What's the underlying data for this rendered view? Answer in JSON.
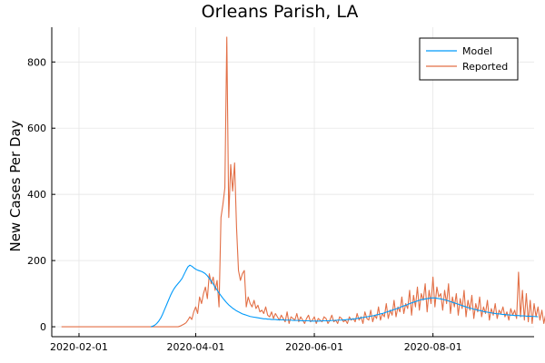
{
  "chart_data": {
    "type": "line",
    "title": "Orleans Parish, LA",
    "xlabel": "",
    "ylabel": "New Cases Per Day",
    "x_start": "2020-01-23",
    "xlim": [
      "2020-01-18",
      "2020-09-22"
    ],
    "ylim": [
      -30,
      905
    ],
    "x_ticks": [
      "2020-02-01",
      "2020-04-01",
      "2020-06-01",
      "2020-08-01"
    ],
    "y_ticks": [
      0,
      200,
      400,
      600,
      800
    ],
    "grid": true,
    "legend_position": "top-right",
    "series": [
      {
        "name": "Model",
        "color": "#009AFA",
        "start": "2020-03-09",
        "values": [
          0,
          2,
          5,
          10,
          17,
          26,
          38,
          52,
          66,
          80,
          94,
          106,
          116,
          124,
          131,
          138,
          146,
          158,
          170,
          181,
          186,
          183,
          178,
          174,
          171,
          169,
          167,
          164,
          160,
          154,
          146,
          138,
          129,
          120,
          111,
          102,
          94,
          86,
          79,
          72,
          66,
          61,
          56,
          52,
          48,
          45,
          42,
          39,
          37,
          35,
          33,
          31,
          30,
          29,
          28,
          27,
          26,
          25,
          24,
          24,
          23,
          23,
          22,
          22,
          22,
          21,
          21,
          21,
          21,
          20,
          20,
          20,
          20,
          19,
          19,
          19,
          19,
          18,
          18,
          18,
          18,
          18,
          17,
          17,
          17,
          17,
          17,
          17,
          18,
          18,
          18,
          18,
          18,
          19,
          19,
          19,
          20,
          20,
          20,
          21,
          21,
          22,
          22,
          23,
          23,
          24,
          25,
          26,
          27,
          28,
          29,
          30,
          31,
          32,
          33,
          34,
          36,
          37,
          39,
          40,
          42,
          44,
          46,
          48,
          50,
          52,
          54,
          56,
          58,
          61,
          63,
          65,
          67,
          70,
          72,
          74,
          76,
          78,
          80,
          82,
          83,
          84,
          85,
          86,
          87,
          87,
          87,
          86,
          85,
          84,
          83,
          81,
          80,
          78,
          76,
          74,
          72,
          70,
          68,
          66,
          64,
          62,
          60,
          58,
          56,
          55,
          53,
          52,
          50,
          49,
          48,
          46,
          45,
          44,
          43,
          42,
          41,
          40,
          39,
          39,
          38,
          37,
          37,
          36,
          36,
          35,
          35,
          34,
          34,
          34,
          33,
          33,
          33,
          32,
          32,
          32,
          31,
          31,
          31,
          30
        ]
      },
      {
        "name": "Reported",
        "color": "#E26F46",
        "start": "2020-01-23",
        "values": [
          0,
          0,
          0,
          0,
          0,
          0,
          0,
          0,
          0,
          0,
          0,
          0,
          0,
          0,
          0,
          0,
          0,
          0,
          0,
          0,
          0,
          0,
          0,
          0,
          0,
          0,
          0,
          0,
          0,
          0,
          0,
          0,
          0,
          0,
          0,
          0,
          0,
          0,
          0,
          0,
          0,
          0,
          0,
          0,
          0,
          0,
          0,
          0,
          0,
          0,
          0,
          0,
          0,
          0,
          0,
          0,
          0,
          0,
          0,
          0,
          0,
          2,
          5,
          8,
          12,
          20,
          30,
          22,
          45,
          60,
          40,
          90,
          70,
          100,
          120,
          85,
          160,
          130,
          150,
          110,
          140,
          60,
          330,
          370,
          420,
          875,
          330,
          490,
          410,
          495,
          300,
          170,
          140,
          160,
          170,
          60,
          90,
          70,
          60,
          80,
          55,
          65,
          45,
          50,
          40,
          60,
          35,
          30,
          45,
          25,
          40,
          30,
          20,
          35,
          25,
          15,
          45,
          10,
          30,
          25,
          20,
          40,
          15,
          30,
          20,
          10,
          25,
          35,
          15,
          20,
          30,
          10,
          25,
          20,
          15,
          30,
          25,
          10,
          20,
          35,
          15,
          20,
          10,
          30,
          25,
          15,
          20,
          10,
          30,
          20,
          25,
          15,
          40,
          20,
          30,
          10,
          45,
          25,
          20,
          50,
          15,
          35,
          25,
          60,
          20,
          40,
          30,
          70,
          25,
          50,
          35,
          80,
          30,
          60,
          45,
          90,
          40,
          70,
          55,
          110,
          35,
          95,
          60,
          120,
          50,
          100,
          80,
          130,
          45,
          110,
          70,
          150,
          60,
          120,
          90,
          100,
          50,
          110,
          70,
          130,
          40,
          90,
          60,
          100,
          35,
          85,
          55,
          110,
          30,
          80,
          50,
          95,
          25,
          70,
          45,
          90,
          30,
          60,
          40,
          80,
          20,
          55,
          35,
          70,
          25,
          50,
          40,
          60,
          30,
          45,
          20,
          55,
          35,
          50,
          25,
          165,
          30,
          110,
          20,
          100,
          15,
          80,
          10,
          70,
          30,
          60,
          20,
          50,
          10,
          40,
          25,
          30,
          15,
          60,
          20,
          45
        ]
      }
    ]
  }
}
